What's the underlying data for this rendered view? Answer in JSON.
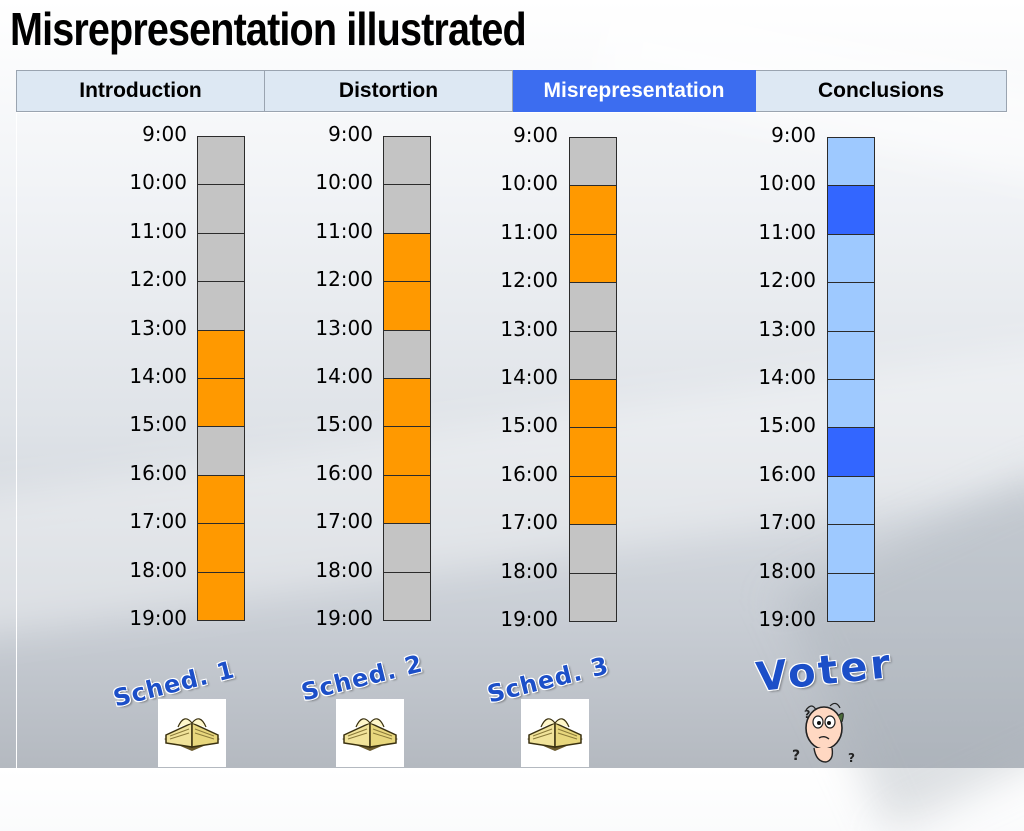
{
  "title": "Misrepresentation illustrated",
  "nav": {
    "tabs": [
      {
        "label": "Introduction",
        "active": false
      },
      {
        "label": "Distortion",
        "active": false
      },
      {
        "label": "Misrepresentation",
        "active": true
      },
      {
        "label": "Conclusions",
        "active": false
      }
    ],
    "active_color": "#3c6df0",
    "inactive_color": "#dde8f3"
  },
  "times": [
    "9:00",
    "10:00",
    "11:00",
    "12:00",
    "13:00",
    "14:00",
    "15:00",
    "16:00",
    "17:00",
    "18:00",
    "19:00"
  ],
  "schedules": [
    {
      "caption": "Sched. 1",
      "icon": "book-icon",
      "slots": [
        0,
        0,
        0,
        0,
        1,
        1,
        0,
        1,
        1,
        1
      ]
    },
    {
      "caption": "Sched. 2",
      "icon": "book-icon",
      "slots": [
        0,
        0,
        1,
        1,
        0,
        1,
        1,
        1,
        0,
        0
      ]
    },
    {
      "caption": "Sched. 3",
      "icon": "book-icon",
      "slots": [
        0,
        1,
        1,
        0,
        0,
        1,
        1,
        1,
        0,
        0
      ]
    },
    {
      "caption": "Voter",
      "icon": "confused-face-icon",
      "slots": [
        0,
        1,
        0,
        0,
        0,
        0,
        1,
        0,
        0,
        0
      ]
    }
  ],
  "colors": {
    "free": "#c4c4c4",
    "busy": "#ff9900",
    "voter_free": "#9ec9ff",
    "voter_busy": "#3366ff",
    "caption": "#1c4fc8"
  }
}
